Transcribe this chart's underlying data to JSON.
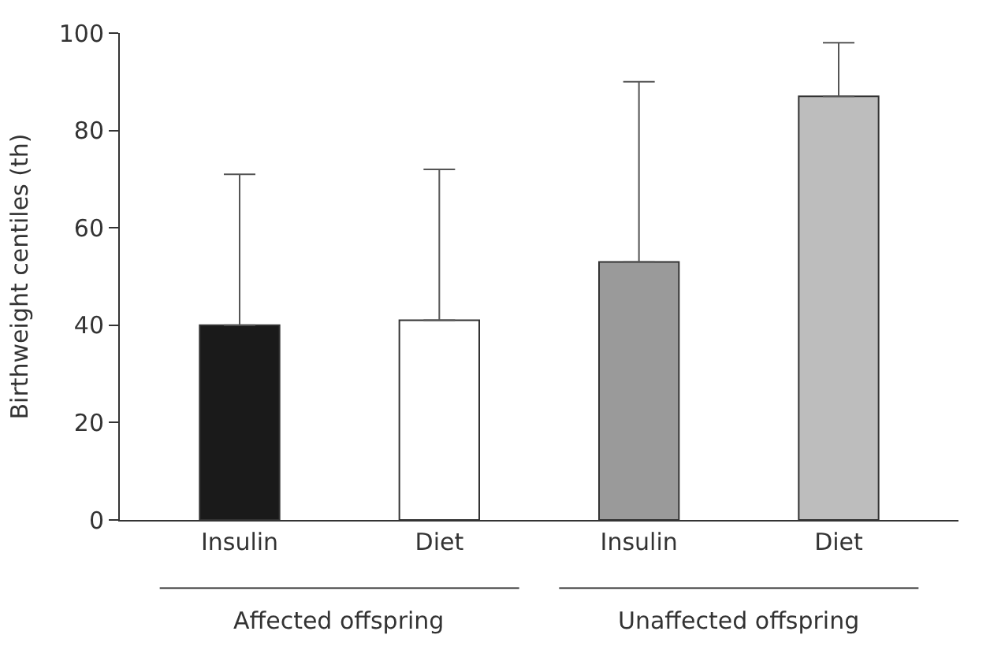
{
  "chart_data": {
    "type": "bar",
    "ylabel": "Birthweight centiles (th)",
    "categories": [
      "Insulin",
      "Diet",
      "Insulin",
      "Diet"
    ],
    "values": [
      40,
      41,
      53,
      87
    ],
    "colors": [
      "#1a1a1a",
      "#ffffff",
      "#9a9a9a",
      "#bdbdbd"
    ],
    "errors": [
      [
        40,
        71
      ],
      [
        41,
        72
      ],
      [
        53,
        90
      ],
      [
        87,
        98
      ]
    ],
    "ylim": [
      0,
      100
    ],
    "yticks": [
      0,
      20,
      40,
      60,
      80,
      100
    ],
    "annotations": [
      "Affected offspring",
      "Unaffected offspring"
    ],
    "legend": false
  }
}
